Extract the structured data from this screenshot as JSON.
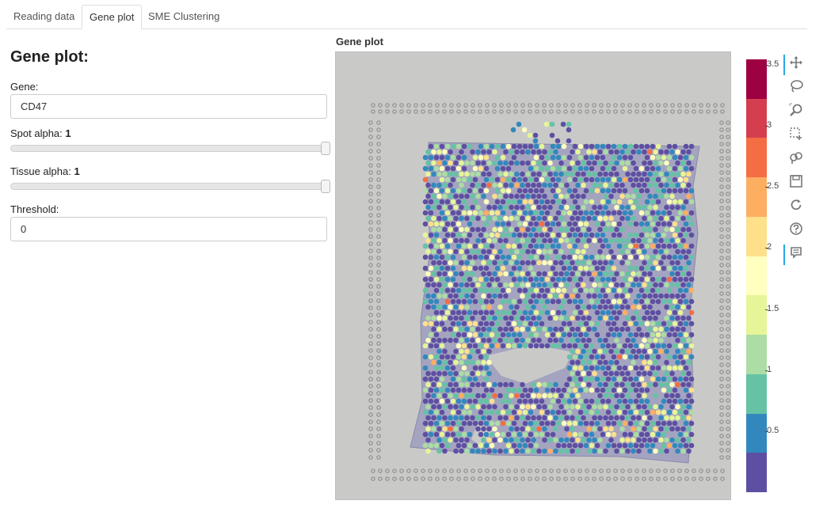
{
  "tabs": [
    {
      "label": "Reading data",
      "active": false
    },
    {
      "label": "Gene plot",
      "active": true
    },
    {
      "label": "SME Clustering",
      "active": false
    }
  ],
  "panel": {
    "title": "Gene plot:",
    "gene_label": "Gene:",
    "gene_value": "CD47",
    "spot_alpha_label": "Spot alpha:",
    "spot_alpha_value": "1",
    "tissue_alpha_label": "Tissue alpha:",
    "tissue_alpha_value": "1",
    "threshold_label": "Threshold:",
    "threshold_value": "0"
  },
  "sliders": {
    "spot_alpha_fraction": 1.0,
    "tissue_alpha_fraction": 1.0
  },
  "plot": {
    "title": "Gene plot"
  },
  "colorbar": {
    "ticks": [
      "3.5",
      "3",
      "2.5",
      "2",
      "1.5",
      "1",
      "0.5"
    ],
    "colors": [
      "#9e0142",
      "#d53e4f",
      "#f46d43",
      "#fdae61",
      "#fee08b",
      "#ffffbf",
      "#e6f598",
      "#abdda4",
      "#66c2a5",
      "#3288bd",
      "#5e4fa2"
    ]
  },
  "toolbar": {
    "tools": [
      {
        "name": "pan-icon",
        "active": true
      },
      {
        "name": "lasso-select-icon",
        "active": false
      },
      {
        "name": "wheel-zoom-icon",
        "active": false
      },
      {
        "name": "box-select-icon",
        "active": false
      },
      {
        "name": "hover-icon",
        "active": false
      },
      {
        "name": "save-icon",
        "active": false
      },
      {
        "name": "reset-icon",
        "active": false
      },
      {
        "name": "help-icon",
        "active": false
      },
      {
        "name": "tooltip-icon",
        "active": true
      }
    ]
  }
}
